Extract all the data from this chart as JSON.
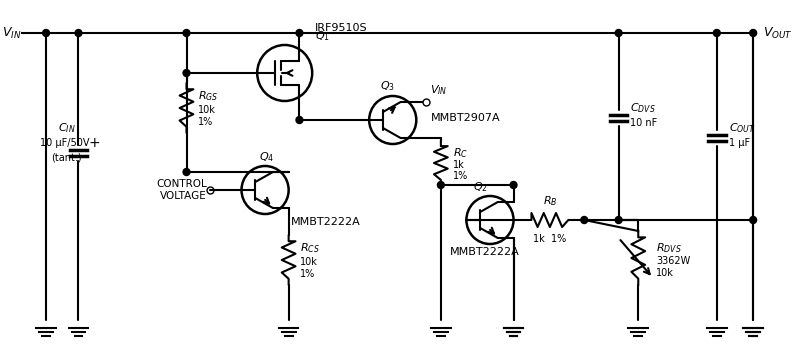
{
  "background_color": "#ffffff",
  "line_color": "#000000",
  "line_width": 1.5,
  "title": "",
  "fig_width": 8.0,
  "fig_height": 3.48,
  "dpi": 100,
  "labels": {
    "VIN_left": "V_IN",
    "VOUT_right": "V_OUT",
    "CIN_label": "C_IN",
    "CIN_val": "10 μF/50V",
    "CIN_tant": "(tant.)",
    "RGS_label": "R_GS",
    "RGS_val": "10k",
    "RGS_pct": "1%",
    "Q1_label": "Q_1",
    "Q1_part": "IRF9510S",
    "Q3_label": "Q_3",
    "Q3_part": "MMBT2907A",
    "Q4_label": "Q_4",
    "Q4_part": "MMBT2222A",
    "Q2_label": "Q_2",
    "Q2_part": "MMBT2222A",
    "RC_label": "R_C",
    "RC_val": "1k",
    "RC_pct": "1%",
    "RB_label": "R_B",
    "RB_val": "1k 1%",
    "RCS_label": "R_CS",
    "RCS_val": "10k",
    "RCS_pct": "1%",
    "RDVS_label": "R_DVS",
    "RDVS_val": "3362W",
    "RDVS_val2": "10k",
    "CDVS_label": "C_DVS",
    "CDVS_val": "10 nF",
    "COUT_label": "C_OUT",
    "COUT_val": "1 μF",
    "VIN_node": "V_IN",
    "CONTROL_VOLTAGE": "CONTROL\nVOLTAGE"
  }
}
